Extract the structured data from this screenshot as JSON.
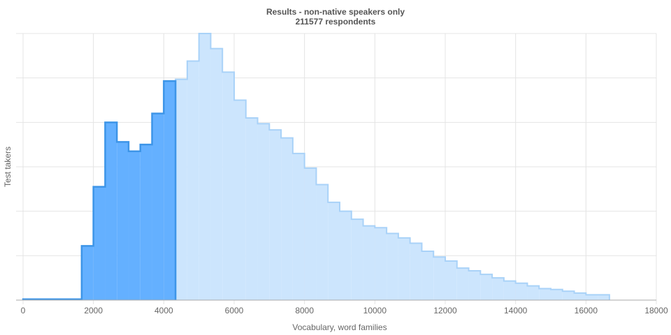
{
  "chart_data": {
    "type": "area",
    "title": "Results - non-native speakers only",
    "subtitle": "211577 respondents",
    "xlabel": "Vocabulary, word families",
    "ylabel": "Test takers",
    "xlim": [
      0,
      18000
    ],
    "ylim": [
      0,
      6
    ],
    "x_ticks": [
      "0",
      "2000",
      "4000",
      "6000",
      "8000",
      "10000",
      "12000",
      "14000",
      "16000",
      "18000"
    ],
    "y_tick_labels_shown": false,
    "grid": true,
    "legend": "none",
    "highlight_until": 4500,
    "colors": {
      "highlight_fill": "#64b0ff",
      "highlight_line": "#3d95e8",
      "rest_fill": "#cce5fd",
      "rest_line": "#a9d2f8",
      "grid": "#e4e4e4",
      "axis": "#aaaaaa"
    },
    "step": 333.3,
    "series": [
      {
        "x": [
          167,
          500,
          833,
          1167,
          1500,
          1833,
          2167,
          2500,
          2833,
          3167,
          3500,
          3833,
          4167,
          4500,
          4833,
          5167,
          5500,
          5833,
          6167,
          6500,
          6833,
          7167,
          7500,
          7833,
          8167,
          8500,
          8833,
          9167,
          9500,
          9833,
          10167,
          10500,
          10833,
          11167,
          11500,
          11833,
          12167,
          12500,
          12833,
          13167,
          13500,
          13833,
          14167,
          14500,
          14833,
          15167,
          15500,
          15833,
          16167,
          16500
        ],
        "values": [
          0.02,
          0.02,
          0.02,
          0.02,
          0.02,
          1.22,
          2.55,
          4.0,
          3.56,
          3.35,
          3.5,
          4.2,
          4.93,
          4.97,
          5.38,
          6.0,
          5.66,
          5.13,
          4.5,
          4.1,
          3.97,
          3.83,
          3.65,
          3.3,
          2.97,
          2.6,
          2.2,
          2.0,
          1.82,
          1.67,
          1.63,
          1.5,
          1.4,
          1.28,
          1.1,
          0.97,
          0.88,
          0.72,
          0.66,
          0.58,
          0.5,
          0.43,
          0.38,
          0.32,
          0.26,
          0.24,
          0.2,
          0.16,
          0.12,
          0.12
        ]
      }
    ]
  }
}
